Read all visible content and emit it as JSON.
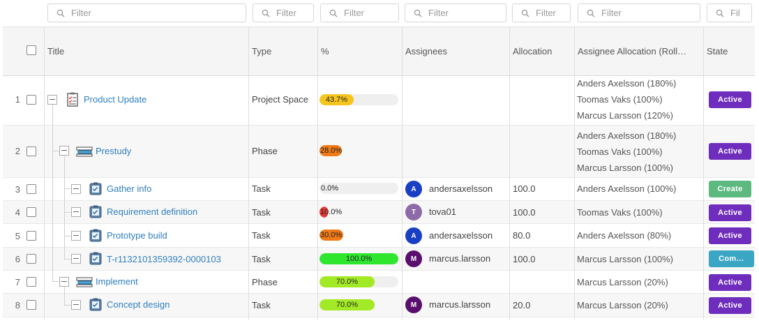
{
  "filters": [
    {
      "placeholder": "Filter"
    },
    {
      "placeholder": "Filter"
    },
    {
      "placeholder": "Filter"
    },
    {
      "placeholder": "Filter"
    },
    {
      "placeholder": "Filter"
    },
    {
      "placeholder": "Filter"
    },
    {
      "placeholder": "Fil"
    }
  ],
  "columns": {
    "title": "Title",
    "type": "Type",
    "percent": "%",
    "assignees": "Assignees",
    "allocation": "Allocation",
    "assignee_allocation": "Assignee Allocation (Roll…",
    "state": "State"
  },
  "rows": [
    {
      "num": "1",
      "title": "Product Update",
      "type": "Project Space",
      "percent": 0.437,
      "percent_text": "43.7%",
      "bar_color": "#f6c51d",
      "assignee": "",
      "assignee_initial": "",
      "allocation": "",
      "assignee_allocation": [
        "Anders Axelsson (180%)",
        "Toomas Vaks (100%)",
        "Marcus Larsson (120%)"
      ],
      "state": "Active",
      "state_color": "#6f2dbd",
      "icon": "project-space-icon"
    },
    {
      "num": "2",
      "title": "Prestudy",
      "type": "Phase",
      "percent": 0.28,
      "percent_text": "28.0%",
      "bar_color": "#f07a16",
      "assignee": "",
      "assignee_initial": "",
      "allocation": "",
      "assignee_allocation": [
        "Anders Axelsson (180%)",
        "Toomas Vaks (100%)",
        "Marcus Larsson (100%)"
      ],
      "state": "Active",
      "state_color": "#6f2dbd",
      "icon": "phase-icon"
    },
    {
      "num": "3",
      "title": "Gather info",
      "type": "Task",
      "percent": 0.0,
      "percent_text": "0.0%",
      "bar_color": "#e53935",
      "assignee": "andersaxelsson",
      "assignee_initial": "A",
      "avatar_color": "#1b3fc4",
      "allocation": "100.0",
      "assignee_allocation": [
        "Anders Axelsson (100%)"
      ],
      "state": "Create",
      "state_color": "#5cb97f",
      "icon": "task-icon"
    },
    {
      "num": "4",
      "title": "Requirement definition",
      "type": "Task",
      "percent": 0.1,
      "percent_text": "10.0%",
      "bar_color": "#e53935",
      "assignee": "tova01",
      "assignee_initial": "T",
      "avatar_color": "#8e6aa8",
      "allocation": "100.0",
      "assignee_allocation": [
        "Toomas Vaks (100%)"
      ],
      "state": "Active",
      "state_color": "#6f2dbd",
      "icon": "task-icon"
    },
    {
      "num": "5",
      "title": "Prototype build",
      "type": "Task",
      "percent": 0.3,
      "percent_text": "30.0%",
      "bar_color": "#f07a16",
      "assignee": "andersaxelsson",
      "assignee_initial": "A",
      "avatar_color": "#1b3fc4",
      "allocation": "80.0",
      "assignee_allocation": [
        "Anders Axelsson (80%)"
      ],
      "state": "Active",
      "state_color": "#6f2dbd",
      "icon": "task-icon"
    },
    {
      "num": "6",
      "title": "T-r1132101359392-0000103",
      "type": "Task",
      "percent": 1.0,
      "percent_text": "100.0%",
      "bar_color": "#2ee62e",
      "assignee": "marcus.larsson",
      "assignee_initial": "M",
      "avatar_color": "#5a0f6e",
      "allocation": "100.0",
      "assignee_allocation": [
        "Marcus Larsson (100%)"
      ],
      "state": "Com…",
      "state_color": "#3ba6c4",
      "icon": "task-icon"
    },
    {
      "num": "7",
      "title": "Implement",
      "type": "Phase",
      "percent": 0.7,
      "percent_text": "70.0%",
      "bar_color": "#a3ea26",
      "assignee": "",
      "assignee_initial": "",
      "allocation": "",
      "assignee_allocation": [
        "Marcus Larsson (20%)"
      ],
      "state": "Active",
      "state_color": "#6f2dbd",
      "icon": "phase-icon"
    },
    {
      "num": "8",
      "title": "Concept design",
      "type": "Task",
      "percent": 0.7,
      "percent_text": "70.0%",
      "bar_color": "#a3ea26",
      "assignee": "marcus.larsson",
      "assignee_initial": "M",
      "avatar_color": "#5a0f6e",
      "allocation": "20.0",
      "assignee_allocation": [
        "Marcus Larsson (20%)"
      ],
      "state": "Active",
      "state_color": "#6f2dbd",
      "icon": "task-icon"
    }
  ]
}
